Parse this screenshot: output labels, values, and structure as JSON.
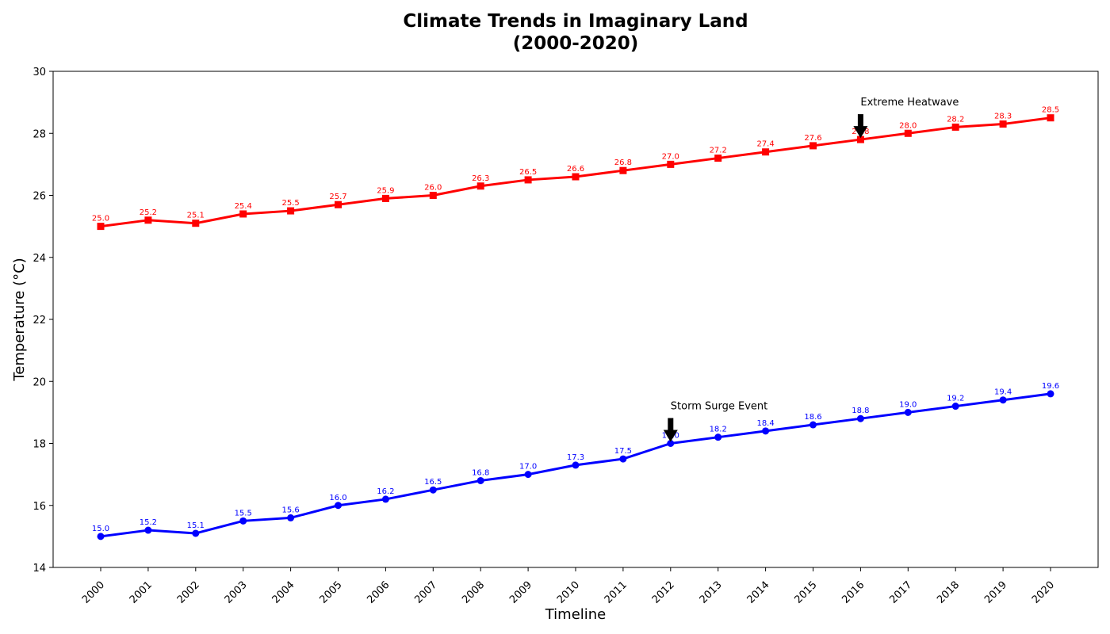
{
  "chart_data": {
    "type": "line",
    "title_lines": [
      "Climate Trends in Imaginary Land",
      "(2000-2020)"
    ],
    "xlabel": "Timeline",
    "ylabel": "Temperature (°C)",
    "categories": [
      "2000",
      "2001",
      "2002",
      "2003",
      "2004",
      "2005",
      "2006",
      "2007",
      "2008",
      "2009",
      "2010",
      "2011",
      "2012",
      "2013",
      "2014",
      "2015",
      "2016",
      "2017",
      "2018",
      "2019",
      "2020"
    ],
    "ylim": [
      14,
      30
    ],
    "yticks": [
      14,
      16,
      18,
      20,
      22,
      24,
      26,
      28,
      30
    ],
    "grid": false,
    "series": [
      {
        "color": "#ff0000",
        "marker": "square",
        "values": [
          25.0,
          25.2,
          25.1,
          25.4,
          25.5,
          25.7,
          25.9,
          26.0,
          26.3,
          26.5,
          26.6,
          26.8,
          27.0,
          27.2,
          27.4,
          27.6,
          27.8,
          28.0,
          28.2,
          28.3,
          28.5
        ]
      },
      {
        "color": "#0000ff",
        "marker": "circle",
        "values": [
          15.0,
          15.2,
          15.1,
          15.5,
          15.6,
          16.0,
          16.2,
          16.5,
          16.8,
          17.0,
          17.3,
          17.5,
          18.0,
          18.2,
          18.4,
          18.6,
          18.8,
          19.0,
          19.2,
          19.4,
          19.6
        ]
      }
    ],
    "annotations": [
      {
        "text": "Extreme Heatwave",
        "x": "2016",
        "y": 27.8
      },
      {
        "text": "Storm Surge Event",
        "x": "2012",
        "y": 18.0
      }
    ]
  }
}
